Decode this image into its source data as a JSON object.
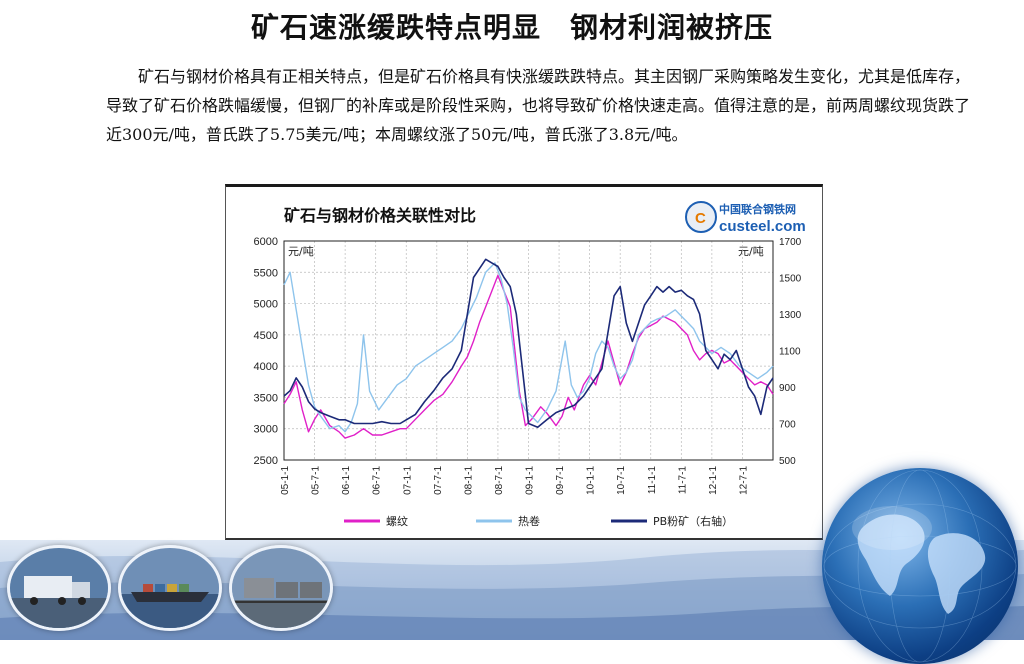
{
  "slide": {
    "title": "矿石速涨缓跌特点明显　钢材利润被挤压",
    "body": "矿石与钢材价格具有正相关特点，但是矿石价格具有快涨缓跌跌特点。其主因钢厂采购策略发生变化，尤其是低库存，导致了矿石价格跌幅缓慢，但钢厂的补库或是阶段性采购，也将导致矿价格快速走高。值得注意的是，前两周螺纹现货跌了近300元/吨，普氏跌了5.75美元/吨；本周螺纹涨了50元/吨，普氏涨了3.8元/吨。"
  },
  "logo": {
    "cn": "中国联合钢铁网",
    "en": "custeel.com"
  },
  "chart_data": {
    "type": "line",
    "title": "矿石与钢材价格关联性对比",
    "ylabel_left": "元/吨",
    "ylabel_right": "元/吨",
    "ylim_left": [
      2500,
      6000
    ],
    "ylim_right": [
      500,
      1700
    ],
    "yticks_left": [
      2500,
      3000,
      3500,
      4000,
      4500,
      5000,
      5500,
      6000
    ],
    "yticks_right": [
      500,
      700,
      900,
      1100,
      1300,
      1500,
      1700
    ],
    "x_ticks": [
      "05-1-1",
      "05-7-1",
      "06-1-1",
      "06-7-1",
      "07-1-1",
      "07-7-1",
      "08-1-1",
      "08-7-1",
      "09-1-1",
      "09-7-1",
      "10-1-1",
      "10-7-1",
      "11-1-1",
      "11-7-1",
      "12-1-1",
      "12-7-1"
    ],
    "grid": true,
    "legend_position": "bottom",
    "series": [
      {
        "name": "螺纹",
        "axis": "left",
        "color": "#e020c8",
        "x": [
          2005.0,
          2005.1,
          2005.2,
          2005.3,
          2005.4,
          2005.5,
          2005.6,
          2005.75,
          2005.9,
          2006.0,
          2006.15,
          2006.3,
          2006.45,
          2006.6,
          2006.75,
          2006.9,
          2007.0,
          2007.15,
          2007.3,
          2007.45,
          2007.6,
          2007.75,
          2007.9,
          2008.0,
          2008.1,
          2008.2,
          2008.3,
          2008.4,
          2008.5,
          2008.6,
          2008.7,
          2008.75,
          2008.85,
          2008.95,
          2009.05,
          2009.2,
          2009.3,
          2009.45,
          2009.55,
          2009.65,
          2009.75,
          2009.9,
          2010.0,
          2010.1,
          2010.2,
          2010.3,
          2010.4,
          2010.5,
          2010.6,
          2010.7,
          2010.8,
          2010.9,
          2011.0,
          2011.1,
          2011.2,
          2011.3,
          2011.4,
          2011.5,
          2011.6,
          2011.7,
          2011.8,
          2011.9,
          2012.0,
          2012.1,
          2012.2,
          2012.3,
          2012.4,
          2012.5,
          2012.6,
          2012.7,
          2012.8,
          2012.9,
          2013.0
        ],
        "values": [
          3400,
          3550,
          3750,
          3300,
          2950,
          3150,
          3300,
          3050,
          2950,
          2850,
          2900,
          3000,
          2900,
          2900,
          2950,
          3000,
          3000,
          3150,
          3300,
          3450,
          3550,
          3750,
          4000,
          4150,
          4400,
          4700,
          4950,
          5200,
          5450,
          5200,
          4950,
          4500,
          3600,
          3050,
          3150,
          3350,
          3250,
          3050,
          3200,
          3500,
          3300,
          3700,
          3850,
          3700,
          4050,
          4400,
          4050,
          3700,
          3900,
          4200,
          4450,
          4600,
          4650,
          4700,
          4800,
          4750,
          4700,
          4600,
          4500,
          4250,
          4100,
          4200,
          4250,
          4200,
          4050,
          4100,
          4000,
          3900,
          3800,
          3700,
          3750,
          3700,
          3550
        ]
      },
      {
        "name": "热卷",
        "axis": "left",
        "color": "#8ec4ec",
        "x": [
          2005.0,
          2005.1,
          2005.2,
          2005.3,
          2005.4,
          2005.5,
          2005.6,
          2005.75,
          2005.9,
          2006.0,
          2006.1,
          2006.2,
          2006.3,
          2006.4,
          2006.55,
          2006.7,
          2006.85,
          2007.0,
          2007.15,
          2007.3,
          2007.45,
          2007.6,
          2007.75,
          2007.9,
          2008.0,
          2008.15,
          2008.3,
          2008.45,
          2008.55,
          2008.65,
          2008.75,
          2008.85,
          2008.95,
          2009.05,
          2009.15,
          2009.3,
          2009.45,
          2009.6,
          2009.7,
          2009.8,
          2009.9,
          2010.0,
          2010.1,
          2010.2,
          2010.3,
          2010.4,
          2010.5,
          2010.6,
          2010.7,
          2010.8,
          2010.9,
          2011.0,
          2011.1,
          2011.25,
          2011.4,
          2011.5,
          2011.6,
          2011.7,
          2011.8,
          2011.9,
          2012.0,
          2012.15,
          2012.3,
          2012.45,
          2012.6,
          2012.75,
          2012.9,
          2013.0
        ],
        "values": [
          5300,
          5500,
          4900,
          4300,
          3700,
          3350,
          3200,
          3000,
          3050,
          2950,
          3100,
          3400,
          4500,
          3600,
          3300,
          3500,
          3700,
          3800,
          4000,
          4100,
          4200,
          4300,
          4400,
          4600,
          4800,
          5100,
          5500,
          5650,
          5400,
          5000,
          4300,
          3500,
          3300,
          3200,
          3100,
          3300,
          3600,
          4400,
          3700,
          3500,
          3600,
          3800,
          4200,
          4400,
          4300,
          4000,
          3800,
          3900,
          4100,
          4500,
          4600,
          4700,
          4750,
          4800,
          4900,
          4800,
          4700,
          4600,
          4400,
          4300,
          4200,
          4300,
          4200,
          4000,
          3900,
          3800,
          3900,
          4000
        ]
      },
      {
        "name": "PB粉矿（右轴）",
        "axis": "right",
        "color": "#1c2a78",
        "x": [
          2005.0,
          2005.1,
          2005.2,
          2005.3,
          2005.4,
          2005.5,
          2005.6,
          2005.75,
          2005.9,
          2006.0,
          2006.15,
          2006.3,
          2006.45,
          2006.6,
          2006.75,
          2006.9,
          2007.0,
          2007.15,
          2007.3,
          2007.45,
          2007.6,
          2007.75,
          2007.9,
          2008.0,
          2008.1,
          2008.2,
          2008.3,
          2008.4,
          2008.5,
          2008.6,
          2008.7,
          2008.8,
          2008.9,
          2009.0,
          2009.15,
          2009.3,
          2009.45,
          2009.6,
          2009.75,
          2009.9,
          2010.0,
          2010.1,
          2010.2,
          2010.3,
          2010.4,
          2010.5,
          2010.6,
          2010.7,
          2010.8,
          2010.9,
          2011.0,
          2011.1,
          2011.2,
          2011.3,
          2011.4,
          2011.5,
          2011.6,
          2011.7,
          2011.8,
          2011.9,
          2012.0,
          2012.1,
          2012.2,
          2012.3,
          2012.4,
          2012.5,
          2012.6,
          2012.7,
          2012.8,
          2012.9,
          2013.0
        ],
        "values": [
          850,
          880,
          950,
          900,
          820,
          780,
          760,
          740,
          720,
          720,
          700,
          700,
          700,
          710,
          700,
          700,
          720,
          750,
          820,
          880,
          950,
          1000,
          1100,
          1300,
          1500,
          1550,
          1600,
          1580,
          1560,
          1500,
          1450,
          1300,
          1000,
          700,
          680,
          720,
          760,
          780,
          800,
          850,
          900,
          950,
          1000,
          1200,
          1400,
          1450,
          1250,
          1150,
          1250,
          1350,
          1400,
          1450,
          1420,
          1450,
          1420,
          1430,
          1400,
          1380,
          1300,
          1100,
          1050,
          1000,
          1080,
          1050,
          1100,
          1000,
          900,
          850,
          750,
          900,
          950
        ]
      }
    ]
  }
}
